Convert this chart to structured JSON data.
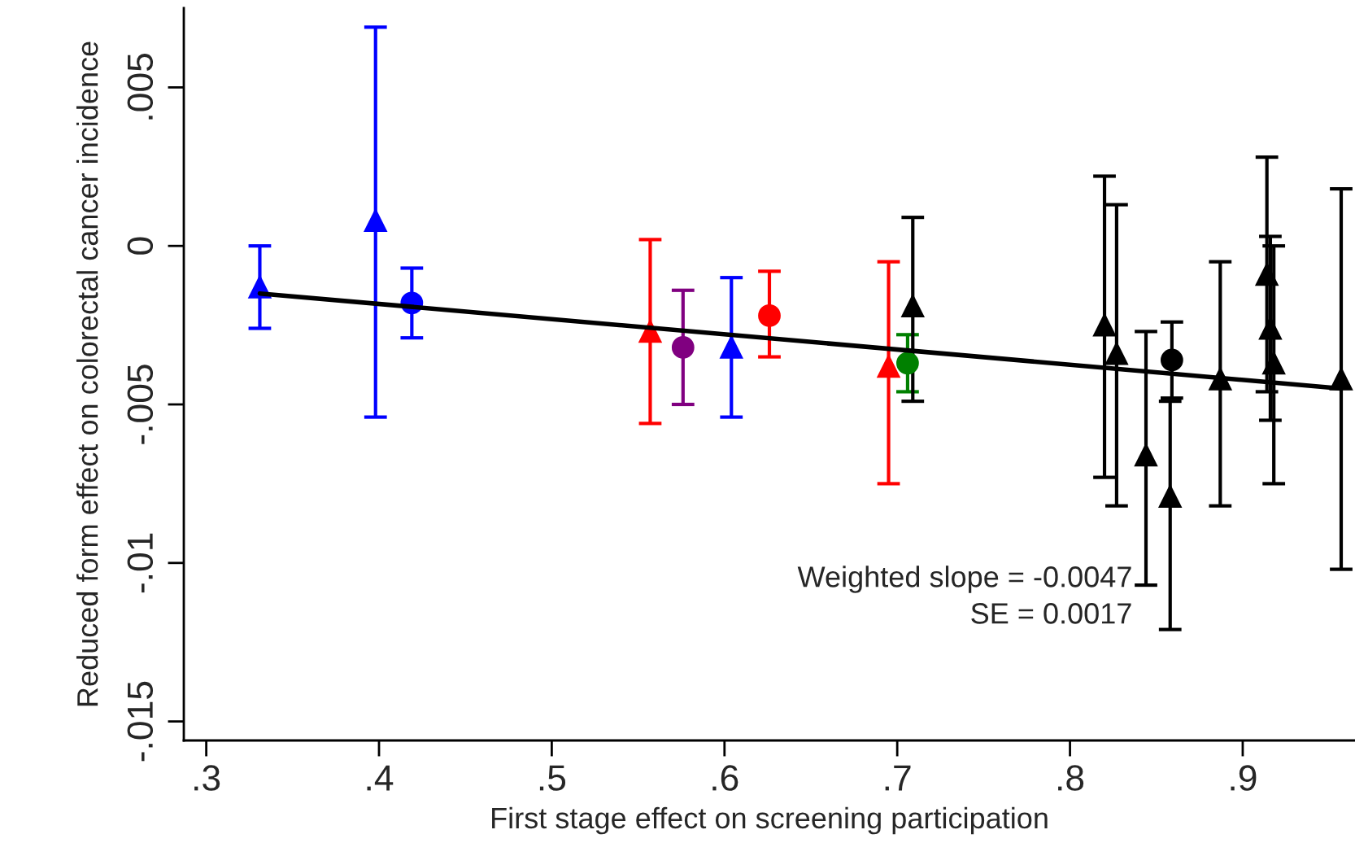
{
  "chart_data": {
    "type": "scatter",
    "xlabel": "First stage effect on screening participation",
    "ylabel": "Reduced form effect on colorectal cancer incidence",
    "xlim": [
      0.287,
      0.965
    ],
    "ylim": [
      -0.0156,
      0.0075
    ],
    "xticks": [
      {
        "value": 0.3,
        "label": ".3"
      },
      {
        "value": 0.4,
        "label": ".4"
      },
      {
        "value": 0.5,
        "label": ".5"
      },
      {
        "value": 0.6,
        "label": ".6"
      },
      {
        "value": 0.7,
        "label": ".7"
      },
      {
        "value": 0.8,
        "label": ".8"
      },
      {
        "value": 0.9,
        "label": ".9"
      }
    ],
    "yticks": [
      {
        "value": 0.005,
        "label": ".005"
      },
      0,
      {
        "value": -0.005,
        "label": "-.005"
      },
      {
        "value": -0.01,
        "label": "-.01"
      },
      {
        "value": -0.015,
        "label": "-.015"
      }
    ],
    "grid": false,
    "legend": false,
    "series": [
      {
        "marker": "triangle",
        "color": "#0000ff",
        "x": [
          0.331,
          0.398,
          0.604
        ],
        "values": [
          -0.0013,
          0.0008,
          -0.0032
        ],
        "errors": [
          [
            -0.0026,
            0.0
          ],
          [
            -0.0054,
            0.0069
          ],
          [
            -0.0054,
            -0.001
          ]
        ]
      },
      {
        "marker": "circle",
        "color": "#0000ff",
        "x": [
          0.419
        ],
        "values": [
          -0.0018
        ],
        "errors": [
          [
            -0.0029,
            -0.0007
          ]
        ]
      },
      {
        "marker": "triangle",
        "color": "#ff0000",
        "x": [
          0.557,
          0.695
        ],
        "values": [
          -0.0027,
          -0.0038
        ],
        "errors": [
          [
            -0.0056,
            0.0002
          ],
          [
            -0.0075,
            -0.0005
          ]
        ]
      },
      {
        "marker": "circle",
        "color": "#ff0000",
        "x": [
          0.626
        ],
        "values": [
          -0.0022
        ],
        "errors": [
          [
            -0.0035,
            -0.0008
          ]
        ]
      },
      {
        "marker": "circle",
        "color": "#800080",
        "x": [
          0.576
        ],
        "values": [
          -0.0032
        ],
        "errors": [
          [
            -0.005,
            -0.0014
          ]
        ]
      },
      {
        "marker": "circle",
        "color": "#008000",
        "x": [
          0.706
        ],
        "values": [
          -0.0037
        ],
        "errors": [
          [
            -0.0046,
            -0.0028
          ]
        ]
      },
      {
        "marker": "triangle",
        "color": "#000000",
        "x": [
          0.709,
          0.82,
          0.827,
          0.844,
          0.858,
          0.887,
          0.914,
          0.916,
          0.918,
          0.957
        ],
        "values": [
          -0.0019,
          -0.0025,
          -0.0034,
          -0.0066,
          -0.0079,
          -0.0042,
          -0.0009,
          -0.0026,
          -0.0037,
          -0.0042
        ],
        "errors": [
          [
            -0.0049,
            0.0009
          ],
          [
            -0.0073,
            0.0022
          ],
          [
            -0.0082,
            0.0013
          ],
          [
            -0.0107,
            -0.0027
          ],
          [
            -0.0121,
            -0.0049
          ],
          [
            -0.0082,
            -0.0005
          ],
          [
            -0.0046,
            0.0028
          ],
          [
            -0.0055,
            0.0003
          ],
          [
            -0.0075,
            0.0
          ],
          [
            -0.0102,
            0.0018
          ]
        ]
      },
      {
        "marker": "circle",
        "color": "#000000",
        "x": [
          0.859
        ],
        "values": [
          -0.0036
        ],
        "errors": [
          [
            -0.0048,
            -0.0024
          ]
        ]
      },
      {
        "type": "line",
        "marker": "none",
        "color": "#000000",
        "x": [
          0.331,
          0.957
        ],
        "values": [
          -0.0015,
          -0.0045
        ]
      }
    ],
    "annotations": [
      "Weighted slope = -0.0047",
      "SE = 0.0017"
    ]
  }
}
